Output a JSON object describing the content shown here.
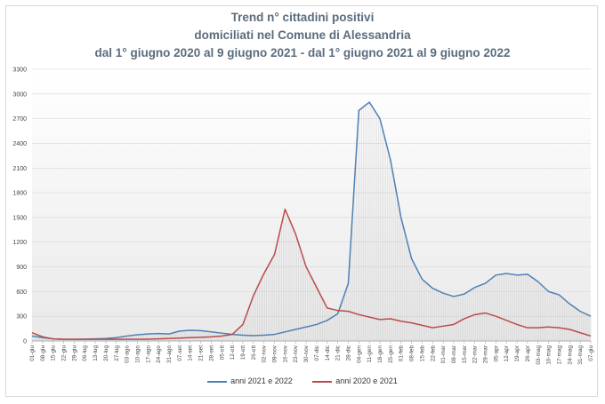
{
  "chart_data": {
    "type": "line",
    "title": [
      "Trend n° cittadini positivi",
      "domiciliati nel Comune di Alessandria",
      "dal 1° giugno 2020 al 9 giugno 2021 - dal 1° giugno 2021 al 9 giugno 2022"
    ],
    "xlabel": "",
    "ylabel": "",
    "ylim": [
      0,
      3300
    ],
    "yticks": [
      0,
      300,
      600,
      900,
      1200,
      1500,
      1800,
      2100,
      2400,
      2700,
      3000,
      3300
    ],
    "grid": true,
    "legend_position": "bottom",
    "x_labels": [
      "01-giu",
      "08-giu",
      "15-giu",
      "22-giu",
      "29-giu",
      "06-lug",
      "13-lug",
      "20-lug",
      "27-lug",
      "03-ago",
      "10-ago",
      "17-ago",
      "24-ago",
      "31-ago",
      "07-set",
      "14-set",
      "21-set",
      "28-set",
      "05-ott",
      "12-ott",
      "19-ott",
      "26-ott",
      "02-nov",
      "09-nov",
      "16-nov",
      "23-nov",
      "30-nov",
      "07-dic",
      "14-dic",
      "21-dic",
      "28-dic",
      "04-gen",
      "11-gen",
      "18-gen",
      "25-gen",
      "01-feb",
      "08-feb",
      "15-feb",
      "22-feb",
      "01-mar",
      "08-mar",
      "15-mar",
      "22-mar",
      "29-mar",
      "05-apr",
      "12-apr",
      "19-apr",
      "26-apr",
      "03-mag",
      "10-mag",
      "17-mag",
      "24-mag",
      "31-mag",
      "07-giu"
    ],
    "series": [
      {
        "name": "anni 2021 e 2022",
        "color": "#4f7fb4",
        "values": [
          60,
          40,
          25,
          20,
          20,
          22,
          25,
          30,
          40,
          60,
          75,
          85,
          90,
          85,
          120,
          130,
          125,
          110,
          95,
          80,
          70,
          65,
          70,
          80,
          110,
          140,
          170,
          200,
          250,
          330,
          700,
          2800,
          2900,
          2700,
          2200,
          1500,
          1000,
          750,
          640,
          580,
          540,
          570,
          650,
          700,
          800,
          820,
          800,
          810,
          720,
          600,
          560,
          450,
          360,
          300
        ]
      },
      {
        "name": "anni 2020 e 2021",
        "color": "#b84c4a",
        "values": [
          100,
          50,
          25,
          20,
          20,
          20,
          20,
          20,
          20,
          20,
          20,
          22,
          25,
          30,
          35,
          40,
          45,
          50,
          60,
          80,
          200,
          550,
          820,
          1050,
          1600,
          1300,
          900,
          650,
          400,
          370,
          360,
          320,
          290,
          260,
          270,
          240,
          220,
          190,
          160,
          180,
          200,
          270,
          320,
          340,
          300,
          250,
          200,
          160,
          160,
          170,
          160,
          140,
          100,
          60
        ]
      }
    ]
  }
}
